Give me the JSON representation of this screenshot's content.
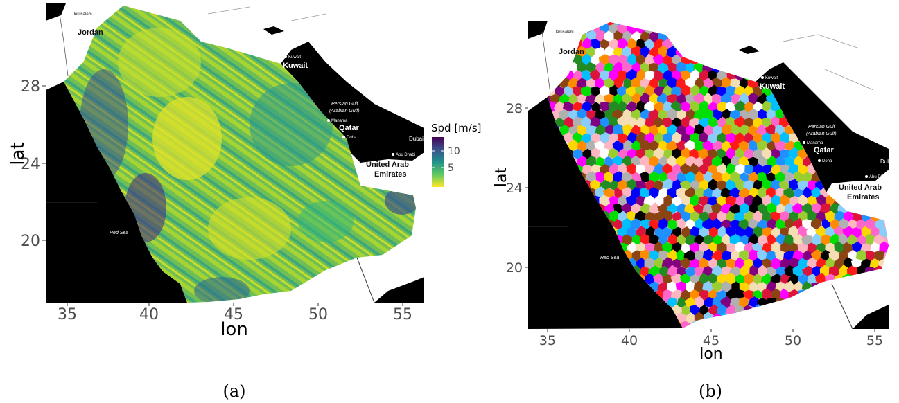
{
  "panels": [
    {
      "id": "a",
      "caption": "(a)",
      "xlabel": "lon",
      "ylabel": "lat",
      "x_ticks": [
        "35",
        "40",
        "45",
        "50",
        "55"
      ],
      "y_ticks": [
        "28",
        "24",
        "20"
      ],
      "legend": {
        "title": "Spd [m/s]",
        "ticks": [
          "10",
          "5"
        ],
        "range": [
          2,
          14
        ]
      },
      "labels": {
        "jordan": "Jordan",
        "kuwait": "Kuwait",
        "kuwait_city": "Kuwait",
        "qatar": "Qatar",
        "uae": "United Arab",
        "uae2": "Emirates",
        "red_sea": "Red Sea",
        "gulf": "Persian Gulf",
        "gulf2": "(Arabian Gulf)",
        "manama": "Manama",
        "doha": "Doha",
        "abu_dhabi": "Abu Dhabi",
        "dubai": "Dubai",
        "jerusalem": "Jerusalem",
        "suez": "Gulf of"
      }
    },
    {
      "id": "b",
      "caption": "(b)",
      "xlabel": "lon",
      "ylabel": "lat",
      "x_ticks": [
        "35",
        "40",
        "45",
        "50",
        "55"
      ],
      "y_ticks": [
        "28",
        "24",
        "20"
      ],
      "labels": {
        "jordan": "Jordan",
        "kuwait": "Kuwait",
        "kuwait_city": "Kuwait",
        "qatar": "Qatar",
        "uae": "United Arab",
        "uae2": "Emirates",
        "red_sea": "Red Sea",
        "gulf": "Persian Gulf",
        "gulf2": "(Arabian Gulf)",
        "manama": "Manama",
        "doha": "Doha",
        "abu_dhabi": "Abu Dhabi",
        "dubai": "Dubai",
        "jerusalem": "Jerusalem",
        "suez": "Gulf of"
      }
    }
  ],
  "colors": {
    "sea": "#000000",
    "land": "#ffffff",
    "viridis_low": "#fde725",
    "viridis_mid": "#21918c",
    "viridis_high": "#440154"
  }
}
